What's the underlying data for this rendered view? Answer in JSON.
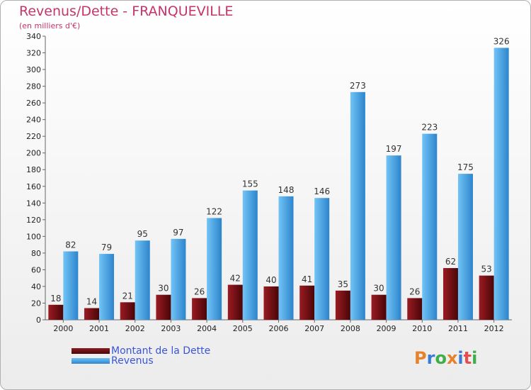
{
  "chart_data": {
    "type": "bar",
    "title": "Revenus/Dette - FRANQUEVILLE",
    "subtitle": "(en milliers d'€)",
    "categories": [
      "2000",
      "2001",
      "2002",
      "2003",
      "2004",
      "2005",
      "2006",
      "2007",
      "2008",
      "2009",
      "2010",
      "2011",
      "2012"
    ],
    "series": [
      {
        "name": "Montant de la Dette",
        "values": [
          18,
          14,
          21,
          30,
          26,
          42,
          40,
          41,
          35,
          30,
          26,
          62,
          53
        ],
        "color": "#7a1014"
      },
      {
        "name": "Revenus",
        "values": [
          82,
          79,
          95,
          97,
          122,
          155,
          148,
          146,
          273,
          197,
          223,
          175,
          326
        ],
        "color": "#4fa8e8"
      }
    ],
    "ylim": [
      0,
      340
    ],
    "yticks": [
      0,
      20,
      40,
      60,
      80,
      100,
      120,
      140,
      160,
      180,
      200,
      220,
      240,
      260,
      280,
      300,
      320,
      340
    ],
    "grid": false,
    "legend": "bottom-left"
  },
  "logo": {
    "text": "Proxiti",
    "colors": [
      "#e8822a",
      "#3a7bd5",
      "#3fae49",
      "#e8822a",
      "#3a7bd5",
      "#e84c4c",
      "#3fae49"
    ]
  }
}
